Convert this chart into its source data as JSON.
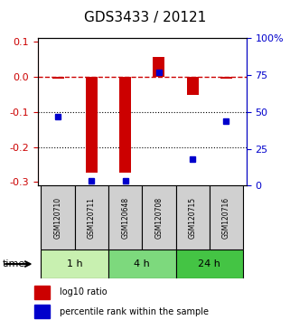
{
  "title": "GDS3433 / 20121",
  "samples": [
    "GSM120710",
    "GSM120711",
    "GSM120648",
    "GSM120708",
    "GSM120715",
    "GSM120716"
  ],
  "log10_ratio": [
    -0.005,
    -0.272,
    -0.273,
    0.057,
    -0.05,
    -0.005
  ],
  "percentile_rank": [
    47,
    3,
    3,
    77,
    18,
    44
  ],
  "time_groups": [
    {
      "label": "1 h",
      "samples": [
        0,
        1
      ],
      "color": "#c8f0b0"
    },
    {
      "label": "4 h",
      "samples": [
        2,
        3
      ],
      "color": "#7dd97d"
    },
    {
      "label": "24 h",
      "samples": [
        4,
        5
      ],
      "color": "#44c444"
    }
  ],
  "ylim_left": [
    -0.31,
    0.11
  ],
  "ylim_right": [
    0,
    100
  ],
  "yticks_left": [
    0.1,
    0.0,
    -0.1,
    -0.2,
    -0.3
  ],
  "yticks_right": [
    100,
    75,
    50,
    25,
    0
  ],
  "bar_color": "#cc0000",
  "square_color": "#0000cc",
  "dashed_line_color": "#cc0000",
  "background_color": "#ffffff",
  "title_fontsize": 11,
  "tick_fontsize": 8
}
